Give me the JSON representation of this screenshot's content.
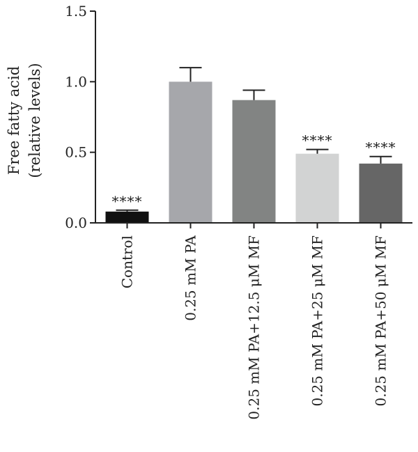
{
  "chart_data": {
    "type": "bar",
    "title": "",
    "xlabel": "",
    "ylabel_lines": [
      "Free fatty acid",
      "(relative levels)"
    ],
    "ylim": [
      0,
      1.5
    ],
    "y_ticks": [
      "0.0",
      "0.5",
      "1.0",
      "1.5"
    ],
    "grid": false,
    "legend": "none",
    "categories": [
      "Control",
      "0.25 mM PA",
      "0.25 mM PA+12.5 μM MF",
      "0.25 mM PA+25 μM MF",
      "0.25 mM PA+50 μM MF"
    ],
    "values": [
      0.08,
      1.0,
      0.87,
      0.49,
      0.42
    ],
    "error_upper": [
      0.01,
      0.1,
      0.07,
      0.03,
      0.05
    ],
    "significance": [
      "****",
      "",
      "",
      "****",
      "****"
    ],
    "bar_colors": [
      "#111111",
      "#a6a7ab",
      "#828483",
      "#d2d3d3",
      "#666666"
    ]
  }
}
